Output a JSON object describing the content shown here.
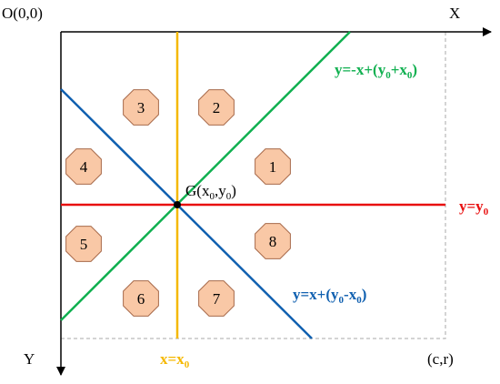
{
  "origin_label": "O(0,0)",
  "x_axis_label": "X",
  "y_axis_label": "Y",
  "corner_label": "(c,r)",
  "center_label": [
    "G(x",
    "0",
    ",y",
    "0",
    ")"
  ],
  "lines": {
    "green": [
      "y=-x+(y",
      "0",
      "+x",
      "0",
      ")"
    ],
    "red": [
      "y=y",
      "0"
    ],
    "blue": [
      "y=x+(y",
      "0",
      "-x",
      "0",
      ")"
    ],
    "orange": [
      "x=x",
      "0"
    ]
  },
  "nodes": [
    {
      "label": "1"
    },
    {
      "label": "2"
    },
    {
      "label": "3"
    },
    {
      "label": "4"
    },
    {
      "label": "5"
    },
    {
      "label": "6"
    },
    {
      "label": "7"
    },
    {
      "label": "8"
    }
  ]
}
